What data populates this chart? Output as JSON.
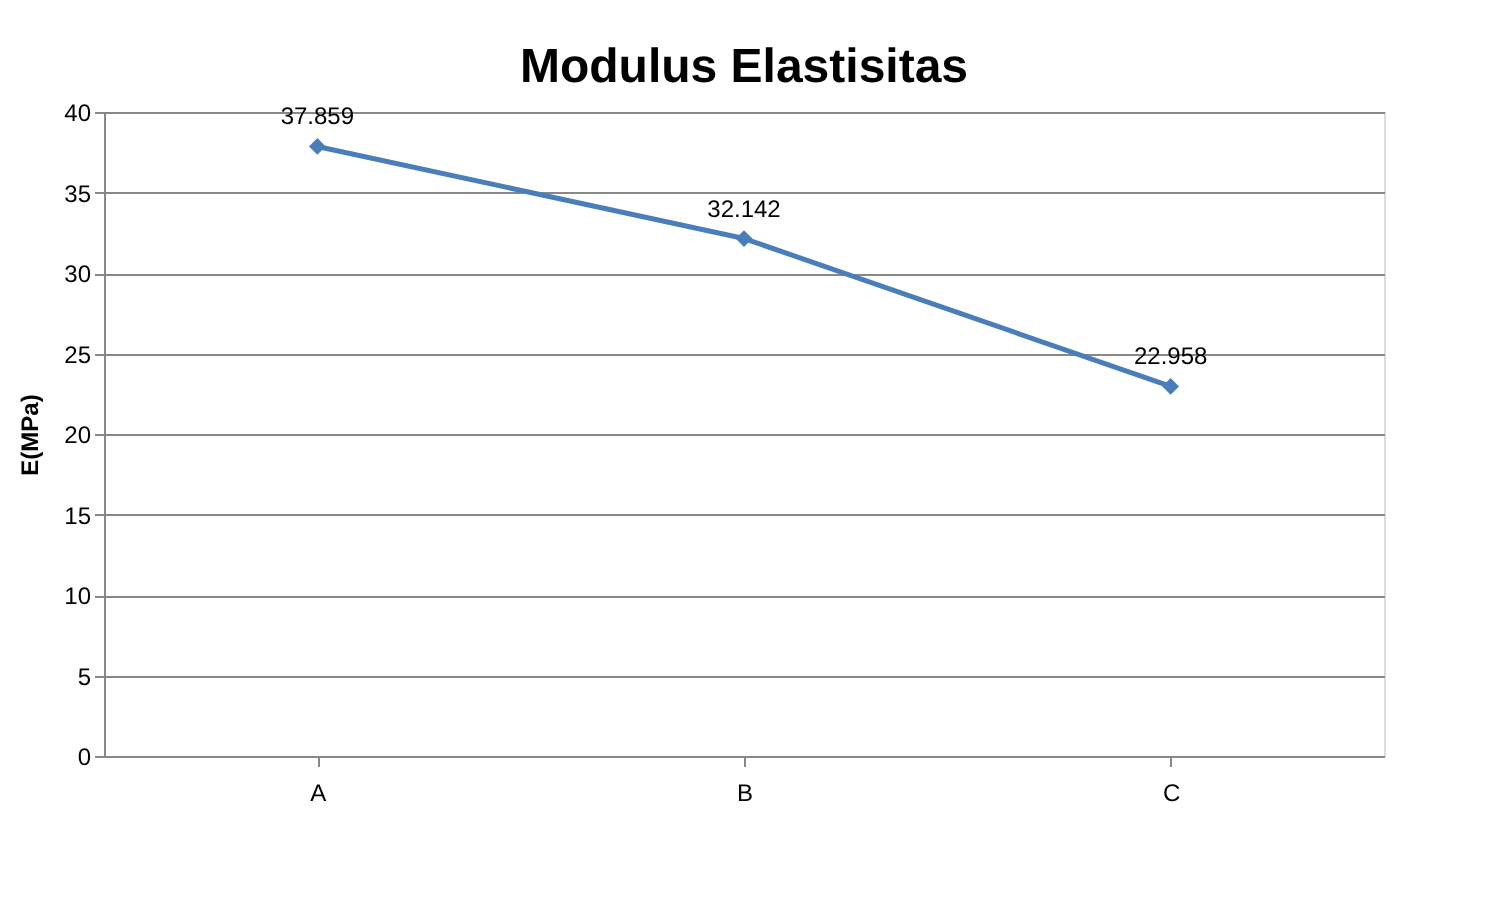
{
  "chart_data": {
    "type": "line",
    "title": "Modulus Elastisitas",
    "ylabel": "E(MPa)",
    "categories": [
      "A",
      "B",
      "C"
    ],
    "series": [
      {
        "color": "#4a7ebb",
        "values": [
          37.859,
          32.142,
          22.958
        ]
      }
    ],
    "ylim": [
      0,
      40
    ],
    "yticks": [
      0,
      5,
      10,
      15,
      20,
      25,
      30,
      35,
      40
    ],
    "grid": "y",
    "marker": "diamond",
    "line_style": "solid",
    "data_labels": true
  }
}
